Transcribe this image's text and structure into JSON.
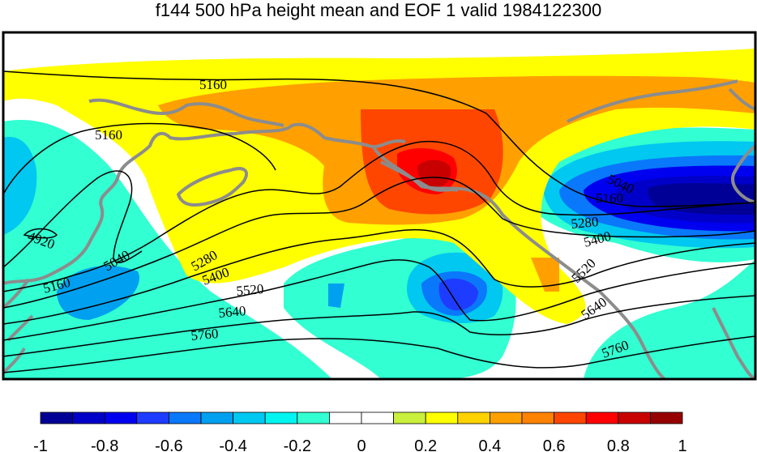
{
  "title": "f144 500 hPa height mean and EOF 1 valid 1984122300",
  "colors": {
    "land": "#8c8c8c",
    "contour": "#000000",
    "scale": [
      "#000096",
      "#0000c8",
      "#0000f0",
      "#1e3cff",
      "#0a78fa",
      "#00a0f0",
      "#00c8f0",
      "#00f5f0",
      "#32ffd2",
      "#ffffff",
      "#ffffff",
      "#c8f03c",
      "#ffff00",
      "#ffd200",
      "#ffa000",
      "#ff8200",
      "#ff4600",
      "#ff0000",
      "#c80000",
      "#960000"
    ]
  },
  "colorbar": {
    "ticks": [
      "-1",
      "-0.8",
      "-0.6",
      "-0.4",
      "-0.2",
      "0",
      "0.2",
      "0.4",
      "0.6",
      "0.8",
      "1"
    ]
  },
  "contour_labels": {
    "c1": "5160",
    "c2": "5160",
    "c3": "4920",
    "c4": "5040",
    "c5": "5160",
    "c6": "5280",
    "c7": "5400",
    "c8": "5520",
    "c9": "5640",
    "c10": "5760",
    "c11": "5040",
    "c12": "5160",
    "c13": "5280",
    "c14": "5400",
    "c15": "5520",
    "c16": "5640",
    "c17": "5760"
  }
}
